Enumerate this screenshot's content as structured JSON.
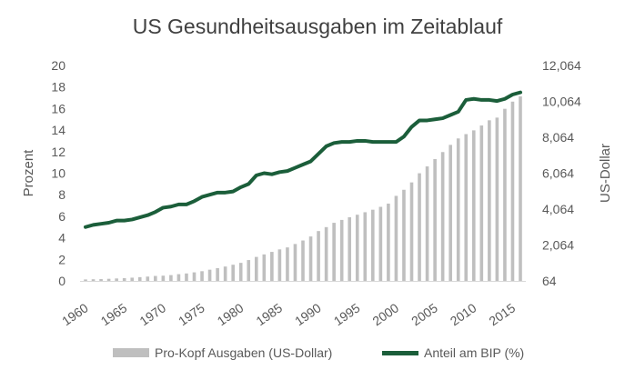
{
  "chart_data": {
    "type": "bar+line",
    "title": "US Gesundheitsausgaben  im Zeitablauf",
    "x": [
      1960,
      1961,
      1962,
      1963,
      1964,
      1965,
      1966,
      1967,
      1968,
      1969,
      1970,
      1971,
      1972,
      1973,
      1974,
      1975,
      1976,
      1977,
      1978,
      1979,
      1980,
      1981,
      1982,
      1983,
      1984,
      1985,
      1986,
      1987,
      1988,
      1989,
      1990,
      1991,
      1992,
      1993,
      1994,
      1995,
      1996,
      1997,
      1998,
      1999,
      2000,
      2001,
      2002,
      2003,
      2004,
      2005,
      2006,
      2007,
      2008,
      2009,
      2010,
      2011,
      2012,
      2013,
      2014,
      2015,
      2016
    ],
    "x_tick_labels": [
      "1960",
      "1965",
      "1970",
      "1975",
      "1980",
      "1985",
      "1990",
      "1995",
      "2000",
      "2005",
      "2010",
      "2015"
    ],
    "x_tick_values": [
      1960,
      1965,
      1970,
      1975,
      1980,
      1985,
      1990,
      1995,
      2000,
      2005,
      2010,
      2015
    ],
    "series": [
      {
        "name": "Pro-Kopf Ausgaben (US-Dollar)",
        "type": "bar",
        "axis": "right",
        "color": "#bfbfbf",
        "values": [
          146,
          156,
          168,
          181,
          201,
          220,
          244,
          273,
          305,
          340,
          355,
          388,
          439,
          479,
          540,
          605,
          689,
          775,
          865,
          965,
          1070,
          1225,
          1400,
          1540,
          1680,
          1820,
          1930,
          2120,
          2315,
          2540,
          2840,
          3060,
          3300,
          3460,
          3610,
          3750,
          3890,
          4030,
          4190,
          4370,
          4800,
          5140,
          5550,
          6060,
          6440,
          6850,
          7240,
          7640,
          8000,
          8240,
          8450,
          8720,
          9010,
          9160,
          9650,
          10050,
          10340
        ]
      },
      {
        "name": "Anteil am BIP (%)",
        "type": "line",
        "axis": "left",
        "color": "#1b5e3a",
        "values": [
          5.0,
          5.2,
          5.3,
          5.4,
          5.6,
          5.6,
          5.7,
          5.9,
          6.1,
          6.4,
          6.8,
          6.9,
          7.1,
          7.1,
          7.4,
          7.8,
          8.0,
          8.2,
          8.2,
          8.3,
          8.7,
          9.0,
          9.8,
          10.0,
          9.9,
          10.1,
          10.2,
          10.5,
          10.8,
          11.1,
          11.8,
          12.5,
          12.8,
          12.9,
          12.9,
          13.0,
          13.0,
          12.9,
          12.9,
          12.9,
          12.9,
          13.4,
          14.3,
          14.9,
          14.9,
          15.0,
          15.1,
          15.4,
          15.7,
          16.8,
          16.9,
          16.8,
          16.8,
          16.7,
          16.9,
          17.3,
          17.5
        ]
      }
    ],
    "y_left": {
      "label": "Prozent",
      "min": 0,
      "max": 20,
      "ticks": [
        "0",
        "2",
        "4",
        "6",
        "8",
        "10",
        "12",
        "14",
        "16",
        "18",
        "20"
      ]
    },
    "y_right": {
      "label": "US-Dollar",
      "min": 64,
      "max": 12064,
      "ticks": [
        "64",
        "2,064",
        "4,064",
        "6,064",
        "8,064",
        "10,064",
        "12,064"
      ]
    },
    "legend_position": "bottom",
    "grid": false
  }
}
